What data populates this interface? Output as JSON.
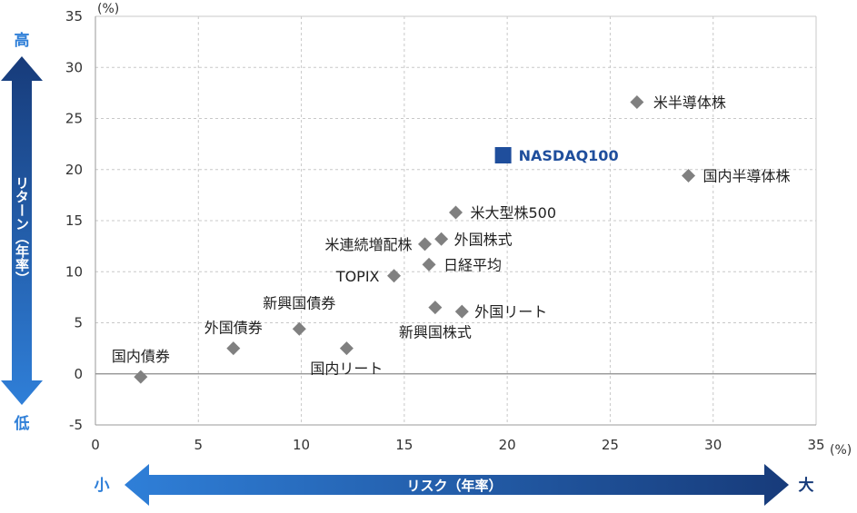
{
  "chart_data": {
    "type": "scatter",
    "x_unit": "(%)",
    "y_unit": "(%)",
    "xlim": [
      0,
      35
    ],
    "ylim": [
      -5,
      35
    ],
    "x_ticks": [
      0,
      5,
      10,
      15,
      20,
      25,
      30,
      35
    ],
    "y_ticks": [
      -5,
      0,
      5,
      10,
      15,
      20,
      25,
      30,
      35
    ],
    "grid": true,
    "x_axis_caption": "リスク（年率）",
    "x_low_label": "小",
    "x_high_label": "大",
    "y_axis_caption": "リターン（年率）",
    "y_high_label": "高",
    "y_low_label": "低",
    "colors": {
      "marker": "#808080",
      "highlight": "#1f4e9c",
      "arrow_light": "#2f7fd8",
      "arrow_dark": "#173b7a",
      "label": "#222222",
      "axis_text": "#333333",
      "grid": "#c8c8c8"
    },
    "points": [
      {
        "name": "国内債券",
        "x": 2.2,
        "y": -0.3,
        "highlight": false
      },
      {
        "name": "外国債券",
        "x": 6.7,
        "y": 2.5,
        "highlight": false
      },
      {
        "name": "新興国債券",
        "x": 9.9,
        "y": 4.4,
        "highlight": false
      },
      {
        "name": "国内リート",
        "x": 12.2,
        "y": 2.5,
        "highlight": false
      },
      {
        "name": "TOPIX",
        "x": 14.5,
        "y": 9.6,
        "highlight": false
      },
      {
        "name": "米連続増配株",
        "x": 16.0,
        "y": 12.7,
        "highlight": false
      },
      {
        "name": "日経平均",
        "x": 16.2,
        "y": 10.7,
        "highlight": false
      },
      {
        "name": "新興国株式",
        "x": 16.5,
        "y": 6.5,
        "highlight": false
      },
      {
        "name": "外国株式",
        "x": 16.8,
        "y": 13.2,
        "highlight": false
      },
      {
        "name": "米大型株500",
        "x": 17.5,
        "y": 15.8,
        "highlight": false
      },
      {
        "name": "外国リート",
        "x": 17.8,
        "y": 6.1,
        "highlight": false
      },
      {
        "name": "NASDAQ100",
        "x": 19.8,
        "y": 21.4,
        "highlight": true
      },
      {
        "name": "米半導体株",
        "x": 26.3,
        "y": 26.6,
        "highlight": false
      },
      {
        "name": "国内半導体株",
        "x": 28.8,
        "y": 19.4,
        "highlight": false
      }
    ]
  }
}
